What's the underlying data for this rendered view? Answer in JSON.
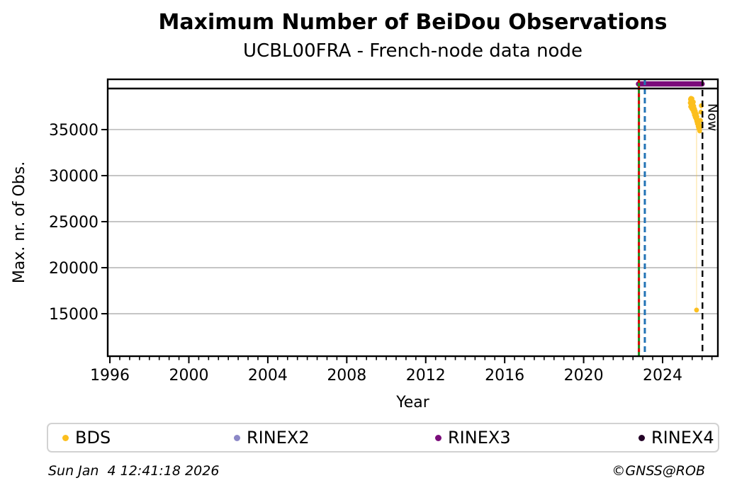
{
  "chart_data": {
    "type": "scatter",
    "title": "Maximum Number of BeiDou Observations",
    "subtitle": "UCBL00FRA - French-node data node",
    "xlabel": "Year",
    "ylabel": "Max. nr. of Obs.",
    "xlim": [
      1995.89,
      2026.8
    ],
    "ylim": [
      10385,
      40460
    ],
    "xticks": [
      1996,
      2000,
      2004,
      2008,
      2012,
      2016,
      2020,
      2024
    ],
    "xminor_step": 0.5,
    "yticks": [
      15000,
      20000,
      25000,
      30000,
      35000
    ],
    "grid": "horizontal",
    "grid_color": "#b2b2b2",
    "frame_color": "#000000",
    "now_line": {
      "year": 2026.02,
      "label": "Now",
      "color": "#000000",
      "style": "dashed"
    },
    "event_lines": [
      {
        "name": "rinex3-start-solid",
        "year": 2022.8,
        "color": "#1d8c1d",
        "style": "solid"
      },
      {
        "name": "first-obs-dashed",
        "year": 2022.8,
        "color": "#e00000",
        "style": "dashed"
      },
      {
        "name": "bds-first-dashed",
        "year": 2023.1,
        "color": "#2273b5",
        "style": "dashed"
      }
    ],
    "availability_bars": [
      {
        "name": "RINEX3",
        "start": 2022.78,
        "end": 2026.0,
        "color": "#7a0b7a"
      }
    ],
    "series": [
      {
        "name": "BDS",
        "color": "#fcbf1e",
        "points": [
          [
            2025.4,
            37900
          ],
          [
            2025.41,
            38300
          ],
          [
            2025.42,
            37500
          ],
          [
            2025.43,
            38100
          ],
          [
            2025.44,
            38400
          ],
          [
            2025.45,
            37700
          ],
          [
            2025.46,
            38200
          ],
          [
            2025.47,
            37300
          ],
          [
            2025.48,
            37950
          ],
          [
            2025.49,
            38350
          ],
          [
            2025.5,
            37600
          ],
          [
            2025.51,
            38050
          ],
          [
            2025.52,
            37150
          ],
          [
            2025.53,
            37800
          ],
          [
            2025.55,
            37400
          ],
          [
            2025.56,
            38000
          ],
          [
            2025.57,
            36900
          ],
          [
            2025.58,
            37550
          ],
          [
            2025.6,
            37100
          ],
          [
            2025.61,
            36600
          ],
          [
            2025.62,
            37250
          ],
          [
            2025.64,
            36850
          ],
          [
            2025.65,
            36350
          ],
          [
            2025.66,
            37000
          ],
          [
            2025.68,
            36550
          ],
          [
            2025.7,
            36150
          ],
          [
            2025.71,
            36700
          ],
          [
            2025.72,
            15400
          ],
          [
            2025.73,
            35900
          ],
          [
            2025.74,
            36400
          ],
          [
            2025.76,
            35650
          ],
          [
            2025.78,
            36050
          ],
          [
            2025.8,
            35350
          ],
          [
            2025.82,
            35750
          ],
          [
            2025.84,
            35100
          ],
          [
            2025.86,
            35500
          ],
          [
            2025.88,
            34850
          ],
          [
            2025.9,
            35250
          ],
          [
            2025.92,
            36000
          ],
          [
            2025.94,
            36900
          ],
          [
            2025.96,
            37600
          ]
        ]
      }
    ],
    "legend_position": "bottom"
  },
  "legend": [
    {
      "label": "BDS",
      "color": "#fcbf1e"
    },
    {
      "label": "RINEX2",
      "color": "#8c88c7"
    },
    {
      "label": "RINEX3",
      "color": "#7b0d7b"
    },
    {
      "label": "RINEX4",
      "color": "#240227"
    }
  ],
  "footer": {
    "timestamp": "Sun Jan  4 12:41:18 2026",
    "copyright": "©GNSS@ROB"
  }
}
